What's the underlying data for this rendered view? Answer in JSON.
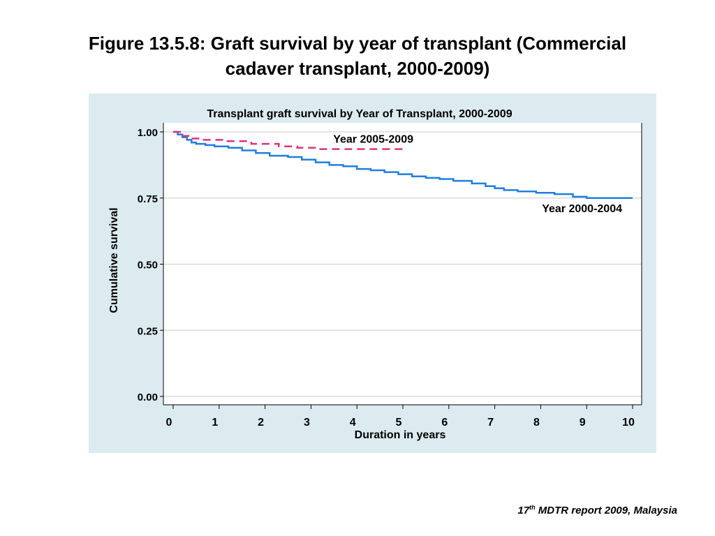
{
  "slide": {
    "title_line1": "Figure 13.5.8: Graft survival by year of transplant (Commercial",
    "title_line2": "cadaver transplant, 2000-2009)"
  },
  "footer": {
    "ordinal": "17",
    "superscript": "th",
    "text": " MDTR report 2009, Malaysia"
  },
  "chart_data": {
    "type": "line",
    "title": "Transplant graft survival by Year of Transplant, 2000-2009",
    "xlabel": "Duration in years",
    "ylabel": "Cumulative survival",
    "xlim": [
      0,
      10
    ],
    "ylim": [
      0,
      1
    ],
    "x_ticks": [
      "0",
      "1",
      "2",
      "3",
      "4",
      "5",
      "6",
      "7",
      "8",
      "9",
      "10"
    ],
    "y_ticks": [
      "0.00",
      "0.25",
      "0.50",
      "0.75",
      "1.00"
    ],
    "grid": true,
    "series": [
      {
        "name": "Year 2000-2004",
        "color": "#1f7fe0",
        "style": "solid",
        "step": true,
        "x": [
          0,
          0.1,
          0.2,
          0.3,
          0.4,
          0.5,
          0.7,
          0.9,
          1.2,
          1.5,
          1.8,
          2.1,
          2.5,
          2.8,
          3.1,
          3.4,
          3.7,
          4.0,
          4.3,
          4.6,
          4.9,
          5.2,
          5.5,
          5.8,
          6.1,
          6.5,
          6.8,
          7.0,
          7.2,
          7.5,
          7.9,
          8.3,
          8.7,
          9.0,
          9.5,
          10.0
        ],
        "y": [
          1.0,
          0.99,
          0.98,
          0.97,
          0.96,
          0.955,
          0.95,
          0.945,
          0.94,
          0.93,
          0.92,
          0.91,
          0.905,
          0.895,
          0.885,
          0.875,
          0.87,
          0.86,
          0.855,
          0.848,
          0.84,
          0.832,
          0.826,
          0.822,
          0.815,
          0.805,
          0.795,
          0.787,
          0.78,
          0.775,
          0.77,
          0.765,
          0.755,
          0.75,
          0.75,
          0.75
        ]
      },
      {
        "name": "Year 2005-2009",
        "color": "#e0307a",
        "style": "dashed",
        "step": true,
        "x": [
          0,
          0.2,
          0.4,
          0.6,
          1.1,
          1.7,
          2.3,
          2.7,
          3.2,
          3.6,
          4.2,
          5.0
        ],
        "y": [
          1.0,
          0.985,
          0.975,
          0.97,
          0.965,
          0.955,
          0.945,
          0.94,
          0.935,
          0.935,
          0.935,
          0.935
        ]
      }
    ]
  }
}
